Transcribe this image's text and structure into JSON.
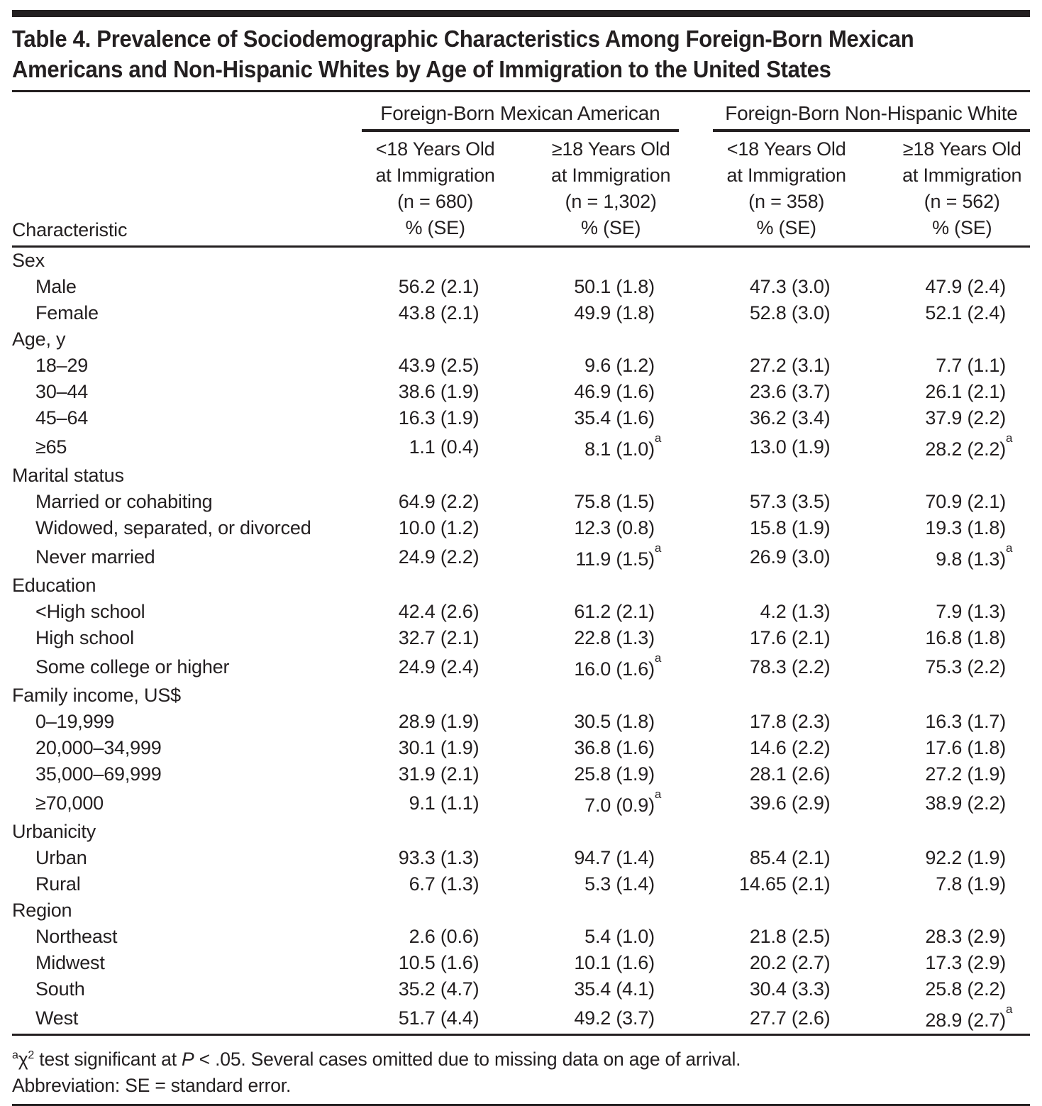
{
  "page": {
    "background_color": "#ffffff",
    "text_color": "#231f20",
    "rule_color": "#231f20"
  },
  "title_lines": [
    "Table 4. Prevalence of Sociodemographic Characteristics Among Foreign-Born Mexican",
    "Americans and Non-Hispanic Whites by Age of Immigration to the United States"
  ],
  "table": {
    "row_header": "Characteristic",
    "group_headers": [
      "Foreign-Born Mexican American",
      "Foreign-Born Non-Hispanic White"
    ],
    "column_headers": [
      {
        "lines": [
          "<18 Years Old",
          "at Immigration",
          "(n = 680)",
          "% (SE)"
        ]
      },
      {
        "lines": [
          "≥18 Years Old",
          "at Immigration",
          "(n = 1,302)",
          "% (SE)"
        ]
      },
      {
        "lines": [
          "<18 Years Old",
          "at Immigration",
          "(n = 358)",
          "% (SE)"
        ]
      },
      {
        "lines": [
          "≥18 Years Old",
          "at Immigration",
          "(n = 562)",
          "% (SE)"
        ]
      }
    ],
    "sections": [
      {
        "label": "Sex",
        "rows": [
          {
            "label": "Male",
            "values": [
              "56.2 (2.1)",
              "50.1 (1.8)",
              "47.3 (3.0)",
              "47.9 (2.4)"
            ],
            "sups": [
              "",
              "",
              "",
              ""
            ]
          },
          {
            "label": "Female",
            "values": [
              "43.8 (2.1)",
              "49.9 (1.8)",
              "52.8 (3.0)",
              "52.1 (2.4)"
            ],
            "sups": [
              "",
              "",
              "",
              ""
            ]
          }
        ]
      },
      {
        "label": "Age, y",
        "rows": [
          {
            "label": "18–29",
            "values": [
              "43.9 (2.5)",
              "9.6 (1.2)",
              "27.2 (3.1)",
              "7.7 (1.1)"
            ],
            "sups": [
              "",
              "",
              "",
              ""
            ]
          },
          {
            "label": "30–44",
            "values": [
              "38.6 (1.9)",
              "46.9 (1.6)",
              "23.6 (3.7)",
              "26.1 (2.1)"
            ],
            "sups": [
              "",
              "",
              "",
              ""
            ]
          },
          {
            "label": "45–64",
            "values": [
              "16.3 (1.9)",
              "35.4 (1.6)",
              "36.2 (3.4)",
              "37.9 (2.2)"
            ],
            "sups": [
              "",
              "",
              "",
              ""
            ]
          },
          {
            "label": "≥65",
            "values": [
              "1.1 (0.4)",
              "8.1 (1.0)",
              "13.0 (1.9)",
              "28.2 (2.2)"
            ],
            "sups": [
              "",
              "a",
              "",
              "a"
            ]
          }
        ]
      },
      {
        "label": "Marital status",
        "rows": [
          {
            "label": "Married or cohabiting",
            "values": [
              "64.9 (2.2)",
              "75.8 (1.5)",
              "57.3 (3.5)",
              "70.9 (2.1)"
            ],
            "sups": [
              "",
              "",
              "",
              ""
            ]
          },
          {
            "label": "Widowed, separated, or divorced",
            "values": [
              "10.0 (1.2)",
              "12.3 (0.8)",
              "15.8 (1.9)",
              "19.3 (1.8)"
            ],
            "sups": [
              "",
              "",
              "",
              ""
            ]
          },
          {
            "label": "Never married",
            "values": [
              "24.9 (2.2)",
              "11.9 (1.5)",
              "26.9 (3.0)",
              "9.8 (1.3)"
            ],
            "sups": [
              "",
              "a",
              "",
              "a"
            ]
          }
        ]
      },
      {
        "label": "Education",
        "rows": [
          {
            "label": "<High school",
            "values": [
              "42.4 (2.6)",
              "61.2 (2.1)",
              "4.2 (1.3)",
              "7.9 (1.3)"
            ],
            "sups": [
              "",
              "",
              "",
              ""
            ]
          },
          {
            "label": "High school",
            "values": [
              "32.7 (2.1)",
              "22.8 (1.3)",
              "17.6 (2.1)",
              "16.8 (1.8)"
            ],
            "sups": [
              "",
              "",
              "",
              ""
            ]
          },
          {
            "label": "Some college or higher",
            "values": [
              "24.9 (2.4)",
              "16.0 (1.6)",
              "78.3 (2.2)",
              "75.3 (2.2)"
            ],
            "sups": [
              "",
              "a",
              "",
              ""
            ]
          }
        ]
      },
      {
        "label": "Family income, US$",
        "rows": [
          {
            "label": "0–19,999",
            "values": [
              "28.9 (1.9)",
              "30.5 (1.8)",
              "17.8 (2.3)",
              "16.3 (1.7)"
            ],
            "sups": [
              "",
              "",
              "",
              ""
            ]
          },
          {
            "label": "20,000–34,999",
            "values": [
              "30.1 (1.9)",
              "36.8 (1.6)",
              "14.6 (2.2)",
              "17.6 (1.8)"
            ],
            "sups": [
              "",
              "",
              "",
              ""
            ]
          },
          {
            "label": "35,000–69,999",
            "values": [
              "31.9 (2.1)",
              "25.8 (1.9)",
              "28.1 (2.6)",
              "27.2 (1.9)"
            ],
            "sups": [
              "",
              "",
              "",
              ""
            ]
          },
          {
            "label": "≥70,000",
            "values": [
              "9.1 (1.1)",
              "7.0 (0.9)",
              "39.6 (2.9)",
              "38.9 (2.2)"
            ],
            "sups": [
              "",
              "a",
              "",
              ""
            ]
          }
        ]
      },
      {
        "label": "Urbanicity",
        "rows": [
          {
            "label": "Urban",
            "values": [
              "93.3 (1.3)",
              "94.7 (1.4)",
              "85.4 (2.1)",
              "92.2 (1.9)"
            ],
            "sups": [
              "",
              "",
              "",
              ""
            ]
          },
          {
            "label": "Rural",
            "values": [
              "6.7 (1.3)",
              "5.3 (1.4)",
              "14.65 (2.1)",
              "7.8 (1.9)"
            ],
            "sups": [
              "",
              "",
              "",
              ""
            ]
          }
        ]
      },
      {
        "label": "Region",
        "rows": [
          {
            "label": "Northeast",
            "values": [
              "2.6 (0.6)",
              "5.4 (1.0)",
              "21.8 (2.5)",
              "28.3 (2.9)"
            ],
            "sups": [
              "",
              "",
              "",
              ""
            ]
          },
          {
            "label": "Midwest",
            "values": [
              "10.5 (1.6)",
              "10.1 (1.6)",
              "20.2 (2.7)",
              "17.3 (2.9)"
            ],
            "sups": [
              "",
              "",
              "",
              ""
            ]
          },
          {
            "label": "South",
            "values": [
              "35.2 (4.7)",
              "35.4 (4.1)",
              "30.4 (3.3)",
              "25.8 (2.2)"
            ],
            "sups": [
              "",
              "",
              "",
              ""
            ]
          },
          {
            "label": "West",
            "values": [
              "51.7 (4.4)",
              "49.2 (3.7)",
              "27.7 (2.6)",
              "28.9 (2.7)"
            ],
            "sups": [
              "",
              "",
              "",
              "a"
            ]
          }
        ]
      }
    ]
  },
  "footnotes": {
    "significance": {
      "marker": "a",
      "chi": "χ",
      "chi_exponent": "2",
      "middle": " test significant at ",
      "p_symbol": "P",
      "rest": " < .05. Several cases omitted due to missing data on age of arrival."
    },
    "abbreviation": "Abbreviation: SE = standard error."
  }
}
